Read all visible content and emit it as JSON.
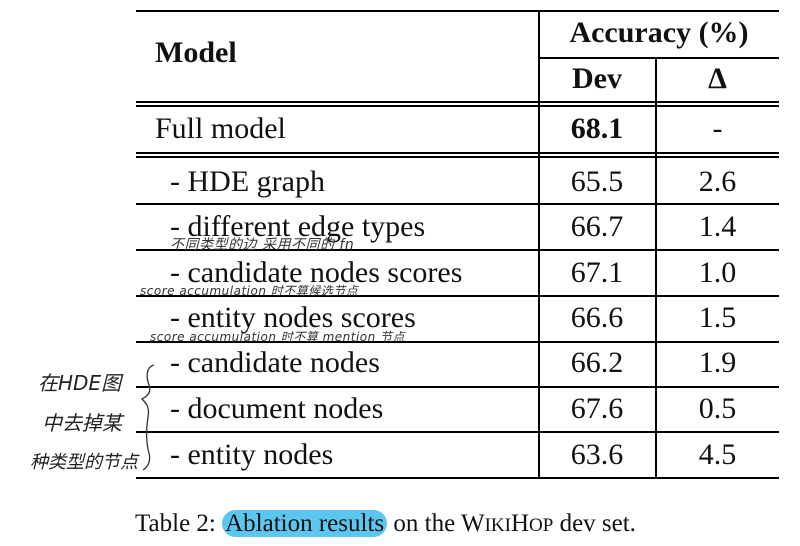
{
  "header": {
    "model": "Model",
    "accuracy": "Accuracy (%)",
    "dev": "Dev",
    "delta": "Δ"
  },
  "full_row": {
    "model": "Full model",
    "dev": "68.1",
    "delta": "-"
  },
  "rows": [
    {
      "model": "- HDE graph",
      "dev": "65.5",
      "delta": "2.6"
    },
    {
      "model": "- different edge types",
      "dev": "66.7",
      "delta": "1.4"
    },
    {
      "model": "- candidate nodes scores",
      "dev": "67.1",
      "delta": "1.0"
    },
    {
      "model": "- entity nodes scores",
      "dev": "66.6",
      "delta": "1.5"
    },
    {
      "model": "- candidate nodes",
      "dev": "66.2",
      "delta": "1.9"
    },
    {
      "model": "- document nodes",
      "dev": "67.6",
      "delta": "0.5"
    },
    {
      "model": "- entity nodes",
      "dev": "63.6",
      "delta": "4.5"
    }
  ],
  "annotations": {
    "note1": "不同类型的边 采用不同的 fn",
    "note2": "score accumulation 时不算候选节点",
    "note3": "score accumulation 时不算 mention 节点",
    "margin1": "在HDE图",
    "margin2": "中去掉某",
    "margin3": "种类型的节点"
  },
  "caption": {
    "prefix": "Table 2: ",
    "highlighted": "Ablation results",
    "middle": " on the W",
    "smallcaps": "IKI",
    "hop_h": "H",
    "smallcaps2": "OP",
    "suffix": " dev set."
  },
  "colors": {
    "highlight": "#5cc7ee",
    "rule": "#000000"
  }
}
